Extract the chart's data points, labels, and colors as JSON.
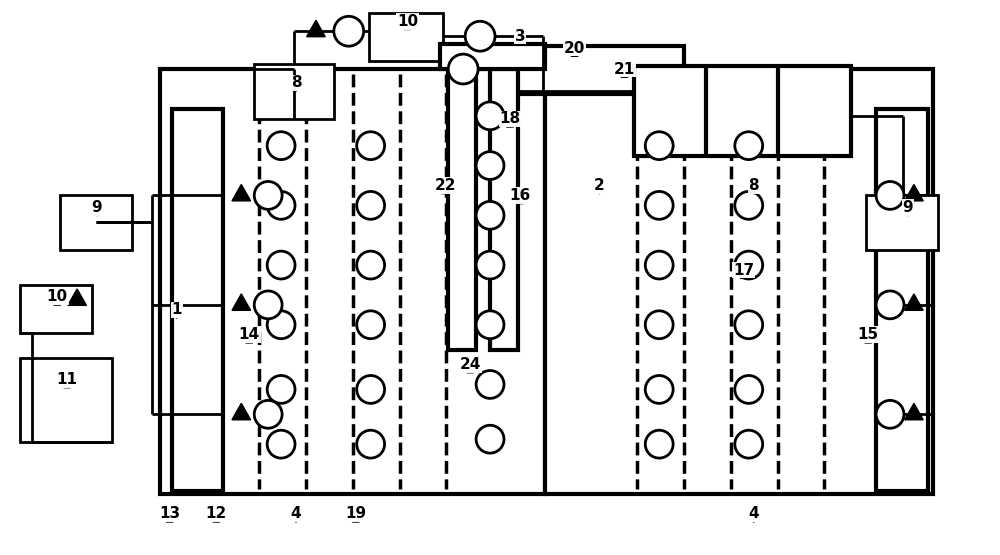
{
  "bg_color": "#ffffff",
  "lc": "#000000",
  "lw": 2.0,
  "tlw": 3.0,
  "fw": 10.0,
  "fh": 5.55,
  "dpi": 100
}
